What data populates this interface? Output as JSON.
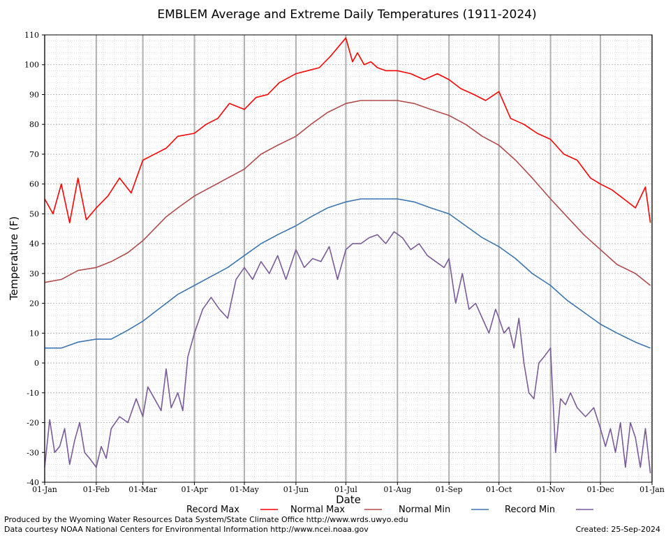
{
  "chart_data": {
    "type": "line",
    "title": "EMBLEM Average and Extreme Daily Temperatures (1911-2024)",
    "xlabel": "Date",
    "ylabel": "Temperature (F)",
    "ylim": [
      -40,
      110
    ],
    "yticks": [
      "110",
      "100",
      "90",
      "80",
      "70",
      "60",
      "50",
      "40",
      "30",
      "20",
      "10",
      "0",
      "-10",
      "-20",
      "-30",
      "-40"
    ],
    "xticks": [
      "01-Jan",
      "01-Feb",
      "01-Mar",
      "01-Apr",
      "01-May",
      "01-Jun",
      "01-Jul",
      "01-Aug",
      "01-Sep",
      "01-Oct",
      "01-Nov",
      "01-Dec",
      "01-Jan"
    ],
    "xtick_days": [
      0,
      31,
      59,
      90,
      120,
      151,
      181,
      212,
      243,
      273,
      304,
      334,
      365
    ],
    "grid": true,
    "legend_position": "bottom",
    "series": [
      {
        "name": "Record Max",
        "color": "#ff0000",
        "days": [
          0,
          5,
          10,
          15,
          20,
          25,
          31,
          38,
          45,
          52,
          59,
          66,
          73,
          80,
          90,
          97,
          104,
          111,
          120,
          127,
          134,
          141,
          151,
          158,
          165,
          172,
          181,
          185,
          188,
          192,
          196,
          200,
          205,
          212,
          220,
          228,
          236,
          243,
          250,
          258,
          265,
          273,
          280,
          288,
          296,
          304,
          312,
          320,
          328,
          334,
          341,
          348,
          355,
          361,
          364
        ],
        "values": [
          55,
          50,
          60,
          47,
          62,
          48,
          52,
          56,
          62,
          57,
          68,
          70,
          72,
          76,
          77,
          80,
          82,
          87,
          85,
          89,
          90,
          94,
          97,
          98,
          99,
          103,
          109,
          101,
          104,
          100,
          101,
          99,
          98,
          98,
          97,
          95,
          97,
          95,
          92,
          90,
          88,
          91,
          82,
          80,
          77,
          75,
          70,
          68,
          62,
          60,
          58,
          55,
          52,
          59,
          47
        ]
      },
      {
        "name": "Normal Max",
        "color": "#b04a4a",
        "days": [
          0,
          10,
          20,
          31,
          40,
          50,
          59,
          66,
          73,
          80,
          90,
          100,
          110,
          120,
          130,
          140,
          151,
          160,
          170,
          181,
          190,
          200,
          212,
          222,
          232,
          243,
          253,
          263,
          273,
          283,
          293,
          304,
          314,
          324,
          334,
          344,
          355,
          364
        ],
        "values": [
          27,
          28,
          31,
          32,
          34,
          37,
          41,
          45,
          49,
          52,
          56,
          59,
          62,
          65,
          70,
          73,
          76,
          80,
          84,
          87,
          88,
          88,
          88,
          87,
          85,
          83,
          80,
          76,
          73,
          68,
          62,
          55,
          49,
          43,
          38,
          33,
          30,
          26
        ]
      },
      {
        "name": "Normal Min",
        "color": "#3a75b0",
        "days": [
          0,
          10,
          20,
          31,
          40,
          50,
          59,
          66,
          73,
          80,
          90,
          100,
          110,
          120,
          130,
          140,
          151,
          160,
          170,
          181,
          190,
          200,
          212,
          222,
          232,
          243,
          253,
          263,
          273,
          283,
          293,
          304,
          314,
          324,
          334,
          344,
          355,
          364
        ],
        "values": [
          5,
          5,
          7,
          8,
          8,
          11,
          14,
          17,
          20,
          23,
          26,
          29,
          32,
          36,
          40,
          43,
          46,
          49,
          52,
          54,
          55,
          55,
          55,
          54,
          52,
          50,
          46,
          42,
          39,
          35,
          30,
          26,
          21,
          17,
          13,
          10,
          7,
          5
        ]
      },
      {
        "name": "Record Min",
        "color": "#7a5a9a",
        "days": [
          0,
          3,
          6,
          9,
          12,
          15,
          18,
          21,
          24,
          27,
          31,
          34,
          37,
          40,
          45,
          50,
          55,
          59,
          62,
          66,
          70,
          73,
          76,
          80,
          83,
          86,
          90,
          95,
          100,
          105,
          110,
          115,
          120,
          125,
          130,
          135,
          140,
          145,
          151,
          156,
          161,
          166,
          171,
          176,
          181,
          185,
          190,
          195,
          200,
          205,
          210,
          215,
          220,
          225,
          230,
          235,
          240,
          243,
          247,
          251,
          255,
          259,
          263,
          267,
          271,
          273,
          276,
          279,
          282,
          285,
          288,
          291,
          294,
          297,
          300,
          304,
          307,
          310,
          313,
          316,
          320,
          325,
          330,
          334,
          337,
          340,
          343,
          346,
          349,
          352,
          355,
          358,
          361,
          364
        ],
        "values": [
          -35,
          -19,
          -30,
          -28,
          -22,
          -34,
          -26,
          -20,
          -30,
          -32,
          -35,
          -28,
          -32,
          -22,
          -18,
          -20,
          -12,
          -18,
          -8,
          -12,
          -16,
          -2,
          -15,
          -10,
          -16,
          2,
          10,
          18,
          22,
          18,
          15,
          28,
          32,
          28,
          34,
          30,
          36,
          28,
          38,
          32,
          35,
          34,
          39,
          28,
          38,
          40,
          40,
          42,
          43,
          40,
          44,
          42,
          38,
          40,
          36,
          34,
          32,
          35,
          20,
          30,
          18,
          20,
          15,
          10,
          18,
          15,
          10,
          12,
          5,
          15,
          0,
          -10,
          -12,
          0,
          2,
          5,
          -30,
          -12,
          -14,
          -10,
          -15,
          -18,
          -15,
          -22,
          -28,
          -22,
          -30,
          -20,
          -35,
          -20,
          -25,
          -35,
          -22,
          -37
        ]
      }
    ]
  },
  "footer": {
    "produced_by": "Produced by the Wyoming Water Resources Data System/State Climate Office http://www.wrds.uwyo.edu",
    "courtesy": "Data courtesy NOAA National Centers for Environmental Information http://www.ncei.noaa.gov",
    "created": "Created:  25-Sep-2024"
  }
}
